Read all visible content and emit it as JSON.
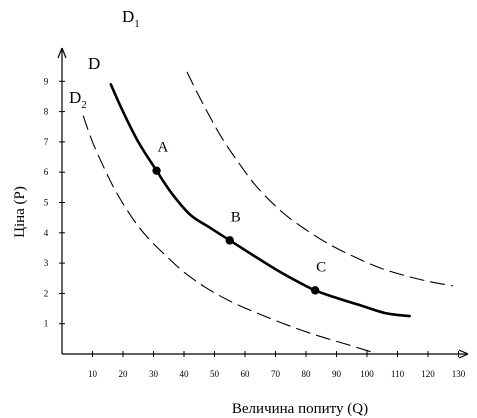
{
  "chart_data": {
    "type": "line",
    "xlabel": "Величина попиту (Q)",
    "ylabel": "Ціна (P)",
    "x_ticks": [
      "10",
      "20",
      "30",
      "40",
      "50",
      "60",
      "70",
      "80",
      "90",
      "100",
      "110",
      "120",
      "130"
    ],
    "y_ticks": [
      "1",
      "2",
      "3",
      "4",
      "5",
      "6",
      "7",
      "8",
      "9"
    ],
    "xlim": [
      0,
      135
    ],
    "ylim": [
      0,
      10
    ],
    "grid": false,
    "series": [
      {
        "name": "D",
        "label": "D",
        "label_sub": "",
        "style": "solid",
        "x": [
          16,
          20,
          25,
          31,
          36,
          42,
          48,
          55,
          62,
          70,
          78,
          83,
          90,
          98,
          106,
          114
        ],
        "y": [
          8.9,
          8.0,
          7.0,
          6.05,
          5.3,
          4.6,
          4.2,
          3.75,
          3.3,
          2.8,
          2.35,
          2.1,
          1.85,
          1.6,
          1.35,
          1.25
        ]
      },
      {
        "name": "D1",
        "label": "D",
        "label_sub": "1",
        "style": "dashed",
        "x": [
          41,
          46,
          52,
          58,
          64,
          72,
          80,
          88,
          96,
          104,
          112,
          120,
          128
        ],
        "y": [
          9.3,
          8.3,
          7.2,
          6.3,
          5.5,
          4.7,
          4.1,
          3.6,
          3.2,
          2.85,
          2.6,
          2.4,
          2.25
        ]
      },
      {
        "name": "D2",
        "label": "D",
        "label_sub": "2",
        "style": "dashed",
        "x": [
          7,
          10,
          14,
          18,
          23,
          28,
          34,
          40,
          47,
          55,
          64,
          74,
          84,
          94,
          102
        ],
        "y": [
          7.85,
          7.0,
          6.1,
          5.3,
          4.5,
          3.85,
          3.25,
          2.7,
          2.2,
          1.75,
          1.35,
          0.95,
          0.6,
          0.3,
          0.05
        ]
      }
    ],
    "points": [
      {
        "label": "A",
        "x": 31,
        "y": 6.05
      },
      {
        "label": "B",
        "x": 55,
        "y": 3.75
      },
      {
        "label": "C",
        "x": 83,
        "y": 2.1
      }
    ]
  }
}
